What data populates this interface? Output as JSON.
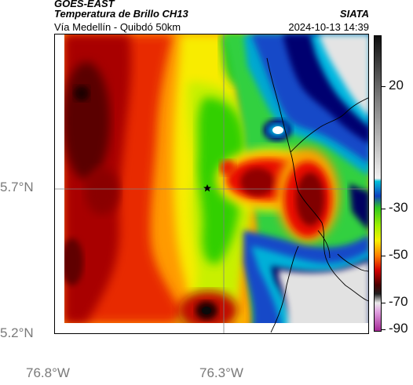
{
  "header": {
    "title": "GOES-EAST",
    "subtitle": "Temperatura de Brillo CH13",
    "route": "Vía Medellín - Quibdó 50km",
    "org": "SIATA",
    "datetime": "2024-10-13 14:39"
  },
  "map": {
    "lat_labels": [
      "5.7°N",
      "5.2°N"
    ],
    "lon_labels": [
      "76.8°W",
      "76.3°W"
    ],
    "marker_icon": "star-icon"
  },
  "colorbar": {
    "labels": [
      "20",
      "-30",
      "-50",
      "-70",
      "-90"
    ],
    "colors": {
      "dark_red": "#4a0000",
      "red": "#d00000",
      "orange": "#ff8000",
      "yellow": "#f8f000",
      "green": "#28d000",
      "cyan": "#00c0d8",
      "blue": "#1040c0",
      "navy": "#000060",
      "magenta": "#c050c0",
      "light_gray": "#e4e4e4",
      "dark_gray": "#101010"
    }
  }
}
